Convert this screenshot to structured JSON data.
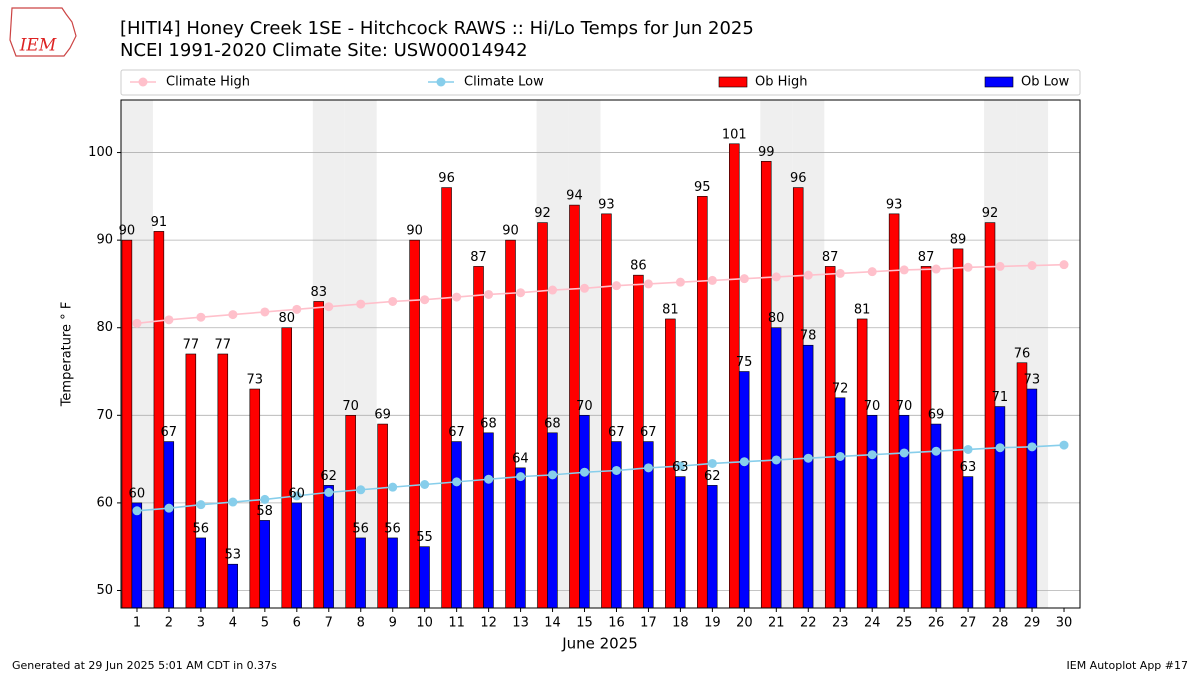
{
  "chart_data": {
    "type": "bar",
    "title": "[HITI4] Honey Creek 1SE - Hitchcock RAWS :: Hi/Lo Temps for Jun 2025",
    "subtitle": "NCEI 1991-2020 Climate Site: USW00014942",
    "logo": "IEM",
    "x_label": "June 2025",
    "y_label": "Temperature ° F",
    "footer_left": "Generated at 29 Jun 2025 5:01 AM CDT in 0.37s",
    "footer_right": "IEM Autoplot App #17",
    "x": [
      1,
      2,
      3,
      4,
      5,
      6,
      7,
      8,
      9,
      10,
      11,
      12,
      13,
      14,
      15,
      16,
      17,
      18,
      19,
      20,
      21,
      22,
      23,
      24,
      25,
      26,
      27,
      28,
      29,
      30
    ],
    "xlim": [
      0.5,
      30.5
    ],
    "xticks": [
      1,
      2,
      3,
      4,
      5,
      6,
      7,
      8,
      9,
      10,
      11,
      12,
      13,
      14,
      15,
      16,
      17,
      18,
      19,
      20,
      21,
      22,
      23,
      24,
      25,
      26,
      27,
      28,
      29,
      30
    ],
    "ylim": [
      48,
      106
    ],
    "yticks": [
      50,
      60,
      70,
      80,
      90,
      100
    ],
    "grid": true,
    "shaded_days": [
      1,
      7,
      8,
      14,
      15,
      21,
      22,
      28,
      29
    ],
    "series": [
      {
        "name": "Climate High",
        "type": "line",
        "color": "#ffc0cb",
        "values": [
          80.5,
          80.9,
          81.2,
          81.5,
          81.8,
          82.1,
          82.4,
          82.7,
          83.0,
          83.2,
          83.5,
          83.8,
          84.0,
          84.3,
          84.5,
          84.8,
          85.0,
          85.2,
          85.4,
          85.6,
          85.8,
          86.0,
          86.2,
          86.4,
          86.6,
          86.7,
          86.9,
          87.0,
          87.1,
          87.2
        ]
      },
      {
        "name": "Climate Low",
        "type": "line",
        "color": "#87ceeb",
        "values": [
          59.1,
          59.4,
          59.8,
          60.1,
          60.4,
          60.8,
          61.2,
          61.5,
          61.8,
          62.1,
          62.4,
          62.7,
          63.0,
          63.2,
          63.5,
          63.7,
          64.0,
          64.2,
          64.5,
          64.7,
          64.9,
          65.1,
          65.3,
          65.5,
          65.7,
          65.9,
          66.1,
          66.3,
          66.4,
          66.6
        ]
      },
      {
        "name": "Ob High",
        "type": "bar",
        "color": "#ff0000",
        "values": [
          90,
          91,
          77,
          77,
          73,
          80,
          83,
          70,
          69,
          90,
          96,
          87,
          90,
          92,
          94,
          93,
          86,
          81,
          95,
          101,
          99,
          96,
          87,
          81,
          93,
          87,
          89,
          92,
          76,
          null
        ]
      },
      {
        "name": "Ob Low",
        "type": "bar",
        "color": "#0000ff",
        "values": [
          60,
          67,
          56,
          53,
          58,
          60,
          62,
          56,
          56,
          55,
          67,
          68,
          64,
          68,
          70,
          67,
          67,
          63,
          62,
          75,
          80,
          78,
          72,
          70,
          70,
          69,
          63,
          71,
          73,
          null
        ]
      }
    ]
  }
}
